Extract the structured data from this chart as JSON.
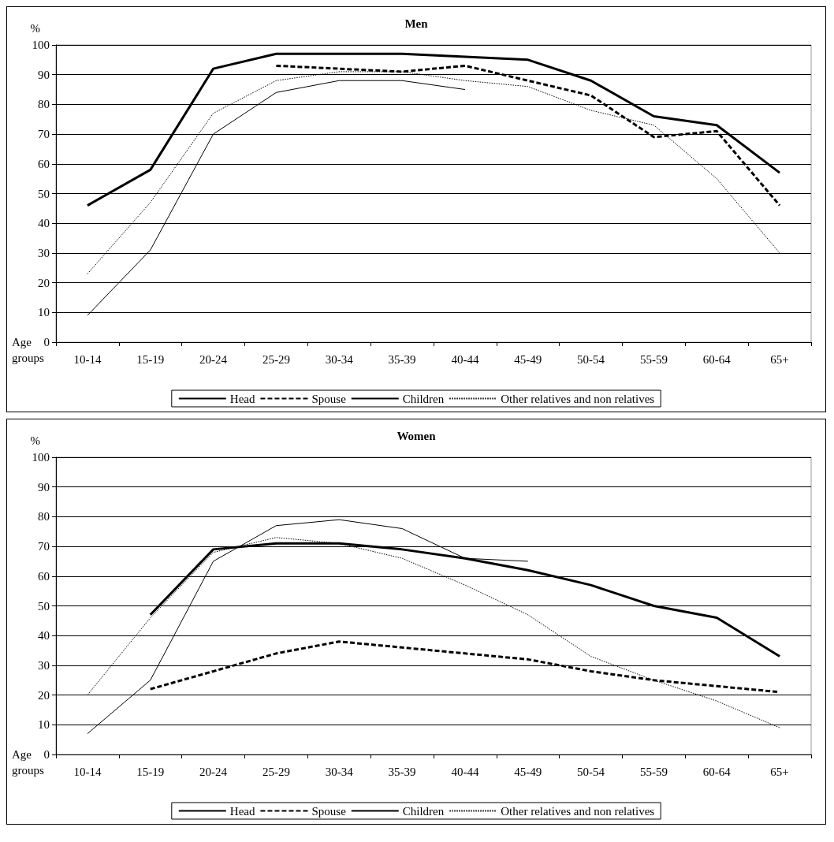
{
  "chart_data": [
    {
      "type": "line",
      "title": "Men",
      "ylabel": "%",
      "xlabel": "Age groups",
      "categories": [
        "10-14",
        "15-19",
        "20-24",
        "25-29",
        "30-34",
        "35-39",
        "40-44",
        "45-49",
        "50-54",
        "55-59",
        "60-64",
        "65+"
      ],
      "ylim": [
        0,
        100
      ],
      "yticks": [
        0,
        10,
        20,
        30,
        40,
        50,
        60,
        70,
        80,
        90,
        100
      ],
      "grid": "y",
      "legend": "bottom",
      "marker": "none",
      "series": [
        {
          "name": "Head",
          "color": "#000000",
          "line_style": "solid",
          "values": [
            46,
            58,
            92,
            97,
            97,
            97,
            96,
            95,
            88,
            76,
            73,
            57
          ]
        },
        {
          "name": "Spouse",
          "color": "#000000",
          "line_style": "dashed",
          "values": [
            null,
            null,
            null,
            93,
            92,
            91,
            93,
            88,
            83,
            69,
            71,
            46
          ]
        },
        {
          "name": "Children",
          "color": "#000000",
          "line_style": "solid",
          "values": [
            9,
            31,
            70,
            84,
            88,
            88,
            85,
            null,
            null,
            null,
            null,
            null
          ]
        },
        {
          "name": "Other relatives and non relatives",
          "color": "#000000",
          "line_style": "dotted",
          "values": [
            23,
            47,
            77,
            88,
            91,
            91,
            88,
            86,
            78,
            73,
            55,
            30
          ]
        }
      ]
    },
    {
      "type": "line",
      "title": "Women",
      "ylabel": "%",
      "xlabel": "Age groups",
      "categories": [
        "10-14",
        "15-19",
        "20-24",
        "25-29",
        "30-34",
        "35-39",
        "40-44",
        "45-49",
        "50-54",
        "55-59",
        "60-64",
        "65+"
      ],
      "ylim": [
        0,
        100
      ],
      "yticks": [
        0,
        10,
        20,
        30,
        40,
        50,
        60,
        70,
        80,
        90,
        100
      ],
      "grid": "y",
      "legend": "bottom",
      "marker": "none",
      "series": [
        {
          "name": "Head",
          "color": "#000000",
          "line_style": "solid",
          "values": [
            null,
            47,
            69,
            71,
            71,
            69,
            66,
            62,
            57,
            50,
            46,
            33
          ]
        },
        {
          "name": "Spouse",
          "color": "#000000",
          "line_style": "dashed",
          "values": [
            null,
            22,
            28,
            34,
            38,
            36,
            34,
            32,
            28,
            25,
            23,
            21
          ]
        },
        {
          "name": "Children",
          "color": "#000000",
          "line_style": "solid",
          "values": [
            7,
            25,
            65,
            77,
            79,
            76,
            66,
            65,
            null,
            null,
            null,
            null
          ]
        },
        {
          "name": "Other relatives and non relatives",
          "color": "#000000",
          "line_style": "dotted",
          "values": [
            20,
            46,
            68,
            73,
            71,
            66,
            57,
            47,
            33,
            25,
            18,
            9
          ]
        }
      ]
    }
  ]
}
